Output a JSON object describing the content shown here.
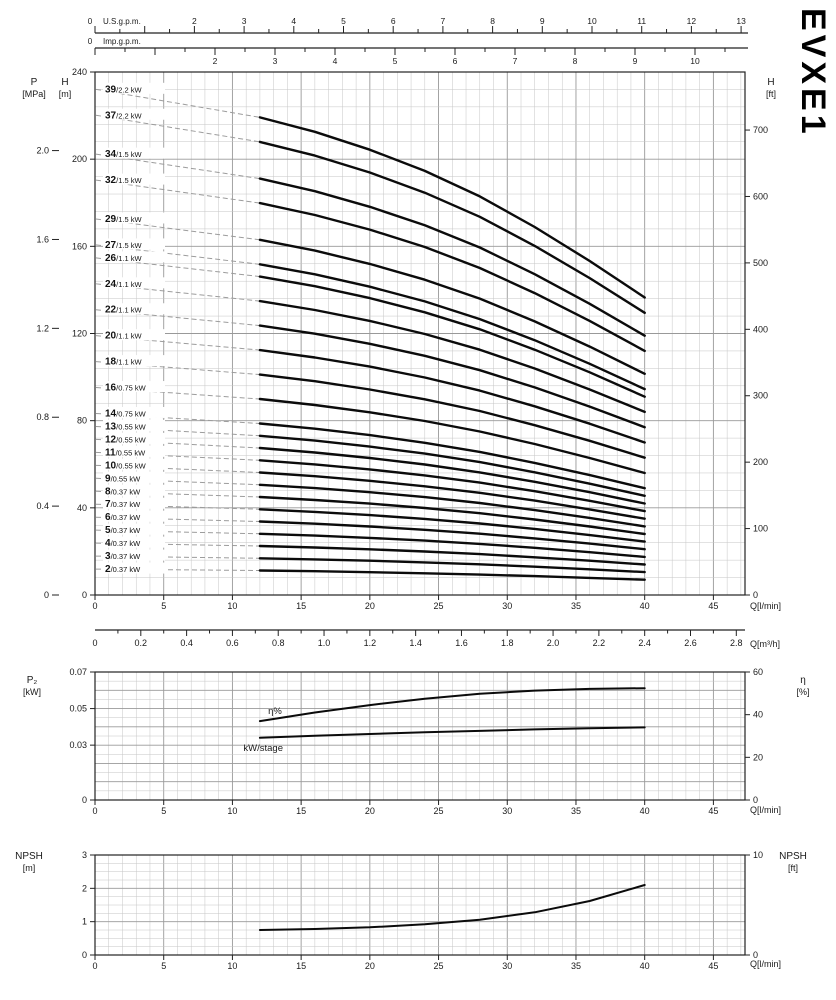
{
  "brand": {
    "model": "EVXE1"
  },
  "rulers": {
    "us": {
      "zero": "0",
      "label": "U.S.g.p.m.",
      "ticks": [
        2,
        3,
        4,
        5,
        6,
        7,
        8,
        9,
        10,
        11,
        12,
        13
      ]
    },
    "imp": {
      "zero": "0",
      "label": "Imp.g.p.m.",
      "ticks": [
        2,
        3,
        4,
        5,
        6,
        7,
        8,
        9,
        10
      ]
    }
  },
  "axis_headers": {
    "pressure": {
      "l1": "P",
      "l2": "[MPa]"
    },
    "head_left": {
      "l1": "H",
      "l2": "[m]"
    },
    "head_right": {
      "l1": "H",
      "l2": "[ft]"
    },
    "power": {
      "l1": "P₂",
      "l2": "[kW]"
    },
    "eta": {
      "l1": "η",
      "l2": "[%]"
    },
    "npsh_left": {
      "l1": "NPSH",
      "l2": "[m]"
    },
    "npsh_right": {
      "l1": "NPSH",
      "l2": "[ft]"
    }
  },
  "flow_labels": {
    "lmin": "Q[l/min]",
    "m3h": "Q[m³/h]"
  },
  "chart_data": [
    {
      "type": "line",
      "title": "EVXE1",
      "xlabel": "Q[l/min]",
      "x2label": "Q[m³/h]",
      "ylabel": "H [m]",
      "y2label": "H [ft]",
      "y3label": "P [MPa]",
      "xlim": [
        0,
        47.3
      ],
      "ylim": [
        0,
        240
      ],
      "grid": true,
      "x_ticks": [
        0,
        5,
        10,
        15,
        20,
        25,
        30,
        35,
        40,
        45
      ],
      "x2_ticks": [
        0,
        0.2,
        0.4,
        0.6,
        0.8,
        1.0,
        1.2,
        1.4,
        1.6,
        1.8,
        2.0,
        2.2,
        2.4,
        2.6,
        2.8
      ],
      "y_ticks_m": [
        0,
        40,
        80,
        120,
        160,
        200,
        240
      ],
      "y_ticks_mpa": [
        0,
        0.4,
        0.8,
        1.2,
        1.6,
        2.0
      ],
      "y_ticks_ft": [
        0,
        100,
        200,
        300,
        400,
        500,
        600,
        700
      ],
      "q": [
        12,
        16,
        20,
        24,
        28,
        32,
        36,
        40
      ],
      "per_stage_head_m": [
        5.62,
        5.45,
        5.24,
        4.99,
        4.69,
        4.33,
        3.93,
        3.5
      ],
      "shutoff_per_stage_m": 5.95,
      "series": [
        {
          "label": "39/2.2 kW",
          "stages": 39,
          "power_kw": "2.2"
        },
        {
          "label": "37/2.2 kW",
          "stages": 37,
          "power_kw": "2.2"
        },
        {
          "label": "34/1.5 kW",
          "stages": 34,
          "power_kw": "1.5"
        },
        {
          "label": "32/1.5 kW",
          "stages": 32,
          "power_kw": "1.5"
        },
        {
          "label": "29/1.5 kW",
          "stages": 29,
          "power_kw": "1.5"
        },
        {
          "label": "27/1.5 kW",
          "stages": 27,
          "power_kw": "1.5"
        },
        {
          "label": "26/1.1 kW",
          "stages": 26,
          "power_kw": "1.1"
        },
        {
          "label": "24/1.1 kW",
          "stages": 24,
          "power_kw": "1.1"
        },
        {
          "label": "22/1.1 kW",
          "stages": 22,
          "power_kw": "1.1"
        },
        {
          "label": "20/1.1 kW",
          "stages": 20,
          "power_kw": "1.1"
        },
        {
          "label": "18/1.1 kW",
          "stages": 18,
          "power_kw": "1.1"
        },
        {
          "label": "16/0.75 kW",
          "stages": 16,
          "power_kw": "0.75"
        },
        {
          "label": "14/0.75 kW",
          "stages": 14,
          "power_kw": "0.75"
        },
        {
          "label": "13/0.55 kW",
          "stages": 13,
          "power_kw": "0.55"
        },
        {
          "label": "12/0.55 kW",
          "stages": 12,
          "power_kw": "0.55"
        },
        {
          "label": "11/0.55 kW",
          "stages": 11,
          "power_kw": "0.55"
        },
        {
          "label": "10/0.55 kW",
          "stages": 10,
          "power_kw": "0.55"
        },
        {
          "label": "9/0.55 kW",
          "stages": 9,
          "power_kw": "0.55"
        },
        {
          "label": "8/0.37 kW",
          "stages": 8,
          "power_kw": "0.37"
        },
        {
          "label": "7/0.37 kW",
          "stages": 7,
          "power_kw": "0.37"
        },
        {
          "label": "6/0.37 kW",
          "stages": 6,
          "power_kw": "0.37"
        },
        {
          "label": "5/0.37 kW",
          "stages": 5,
          "power_kw": "0.37"
        },
        {
          "label": "4/0.37 kW",
          "stages": 4,
          "power_kw": "0.37"
        },
        {
          "label": "3/0.37 kW",
          "stages": 3,
          "power_kw": "0.37"
        },
        {
          "label": "2/0.37 kW",
          "stages": 2,
          "power_kw": "0.37"
        }
      ]
    },
    {
      "type": "line",
      "xlabel": "Q[l/min]",
      "ylabel": "P2 [kW]",
      "y2label": "η [%]",
      "xlim": [
        0,
        47.3
      ],
      "ylim_kw": [
        0,
        0.07
      ],
      "ylim_eta": [
        0,
        60
      ],
      "grid": true,
      "x_ticks": [
        0,
        5,
        10,
        15,
        20,
        25,
        30,
        35,
        40,
        45
      ],
      "y_ticks_kw": [
        0,
        0.03,
        0.05,
        0.07
      ],
      "y_ticks_eta": [
        0,
        20,
        40,
        60
      ],
      "q": [
        12,
        16,
        20,
        24,
        28,
        32,
        36,
        40
      ],
      "series": [
        {
          "name": "η%",
          "axis": "eta",
          "values": [
            37,
            41,
            44.5,
            47.5,
            49.8,
            51.3,
            52.1,
            52.4
          ]
        },
        {
          "name": "kW/stage",
          "axis": "kw",
          "values": [
            0.034,
            0.0351,
            0.0361,
            0.037,
            0.0378,
            0.0386,
            0.0392,
            0.0397
          ]
        }
      ]
    },
    {
      "type": "line",
      "xlabel": "Q[l/min]",
      "ylabel": "NPSH [m]",
      "y2label": "NPSH [ft]",
      "xlim": [
        0,
        47.3
      ],
      "ylim_m": [
        0,
        3
      ],
      "ylim_ft": [
        0,
        10
      ],
      "grid": true,
      "x_ticks": [
        0,
        5,
        10,
        15,
        20,
        25,
        30,
        35,
        40,
        45
      ],
      "y_ticks_m": [
        0,
        1,
        2,
        3
      ],
      "y_ticks_ft": [
        0,
        10
      ],
      "q": [
        12,
        16,
        20,
        24,
        28,
        32,
        36,
        40
      ],
      "values_m": [
        0.75,
        0.78,
        0.83,
        0.92,
        1.06,
        1.28,
        1.62,
        2.1
      ]
    }
  ]
}
